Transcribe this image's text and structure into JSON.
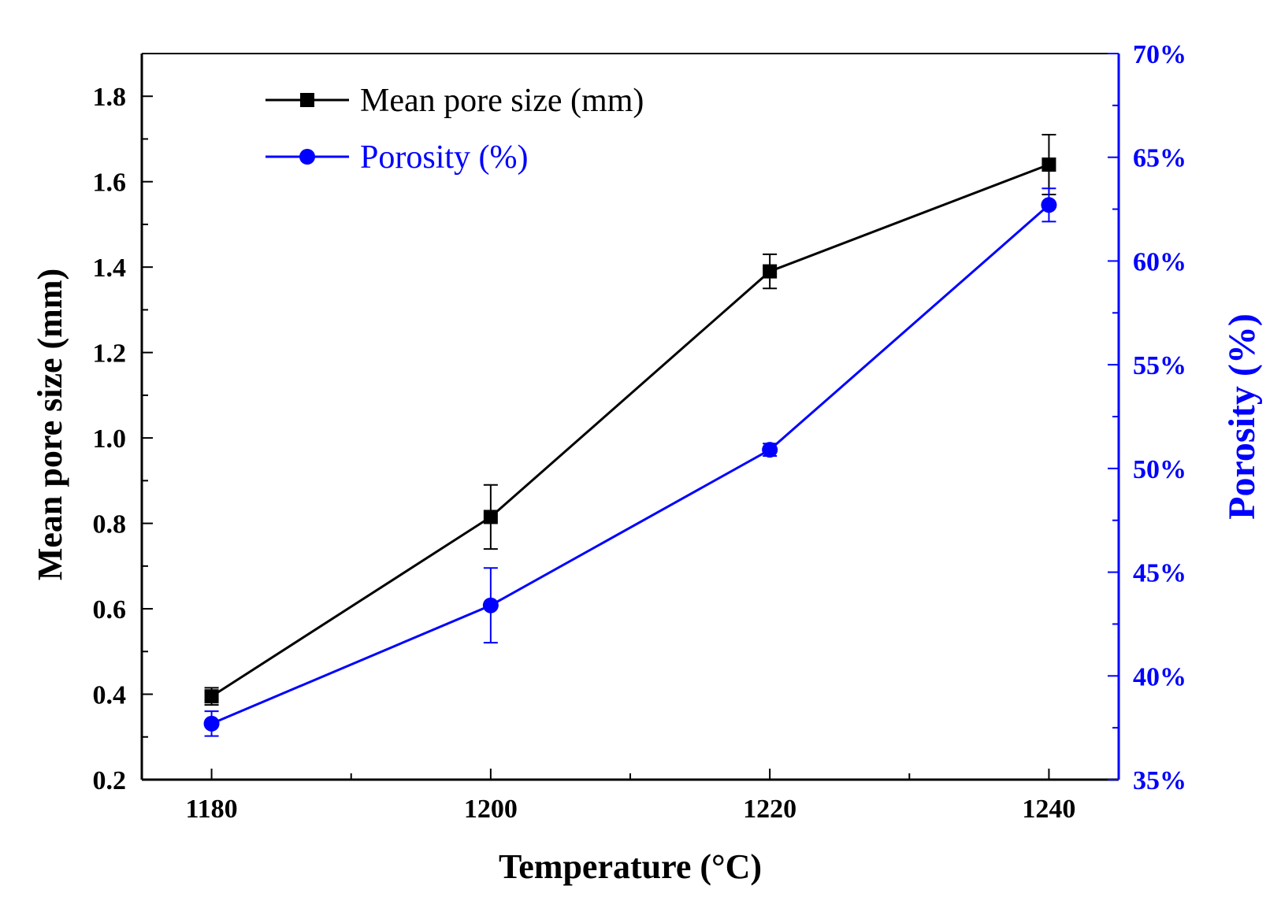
{
  "chart_data": {
    "type": "line",
    "x": [
      1180,
      1200,
      1220,
      1240
    ],
    "xlabel": "Temperature (°C)",
    "xlim": [
      1175,
      1245
    ],
    "xticks": [
      1180,
      1200,
      1220,
      1240
    ],
    "xtick_labels": [
      "1180",
      "1200",
      "1220",
      "1240"
    ],
    "ylabel_left": "Mean pore size (mm)",
    "ylim_left": [
      0.2,
      1.9
    ],
    "yticks_left": [
      0.2,
      0.4,
      0.6,
      0.8,
      1.0,
      1.2,
      1.4,
      1.6,
      1.8
    ],
    "ytick_labels_left": [
      "0.2",
      "0.4",
      "0.6",
      "0.8",
      "1.0",
      "1.2",
      "1.4",
      "1.6",
      "1.8"
    ],
    "ylabel_right": "Porosity (%)",
    "ylim_right": [
      35,
      70
    ],
    "yticks_right": [
      35,
      40,
      45,
      50,
      55,
      60,
      65,
      70
    ],
    "ytick_labels_right": [
      "35%",
      "40%",
      "45%",
      "50%",
      "55%",
      "60%",
      "65%",
      "70%"
    ],
    "legend_position": "top-left",
    "grid": false,
    "series": [
      {
        "name": "Mean pore size (mm)",
        "axis": "left",
        "color": "#000000",
        "marker": "square",
        "values": [
          0.395,
          0.815,
          1.39,
          1.64
        ],
        "error": [
          0.02,
          0.075,
          0.04,
          0.07
        ]
      },
      {
        "name": "Porosity (%)",
        "axis": "right",
        "color": "#0000ff",
        "marker": "circle",
        "values": [
          37.7,
          43.4,
          50.9,
          62.7
        ],
        "error": [
          0.6,
          1.8,
          0.3,
          0.8
        ]
      }
    ]
  }
}
